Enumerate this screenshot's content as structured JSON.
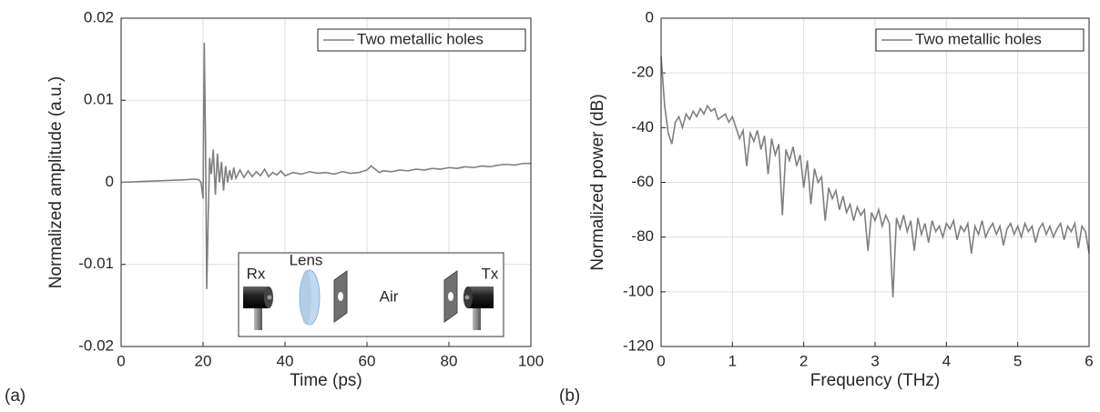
{
  "chart_data": [
    {
      "type": "line",
      "panel_label": "(a)",
      "xlabel": "Time (ps)",
      "ylabel": "Normalized amplitude (a.u.)",
      "x": [
        0,
        5,
        10,
        15,
        18,
        19,
        19.5,
        20,
        20.3,
        20.6,
        20.9,
        21.3,
        21.6,
        22,
        22.5,
        23,
        23.5,
        24,
        24.5,
        25,
        25.5,
        26,
        26.5,
        27,
        27.5,
        28,
        29,
        30,
        31,
        32,
        33,
        34,
        35,
        36,
        37,
        38,
        39,
        40,
        42,
        44,
        46,
        48,
        50,
        52,
        54,
        56,
        58,
        60,
        61,
        62,
        63,
        64,
        66,
        68,
        70,
        72,
        74,
        76,
        78,
        80,
        82,
        84,
        86,
        88,
        90,
        92,
        94,
        96,
        98,
        100
      ],
      "series": [
        {
          "name": "Two metallic holes",
          "color": "#7f7f7f",
          "values": [
            0,
            0.0001,
            0.0002,
            0.0003,
            0.0004,
            0.0003,
            0,
            -0.002,
            0.017,
            0.005,
            -0.013,
            -0.003,
            0.003,
            0.001,
            0.004,
            -0.0015,
            0.0035,
            0,
            0.0025,
            -0.001,
            0.002,
            0,
            0.0015,
            0.0003,
            0.0018,
            0.0005,
            0.0015,
            0.0006,
            0.0014,
            0.0007,
            0.0013,
            0.0008,
            0.0016,
            0.0007,
            0.0012,
            0.0009,
            0.0014,
            0.0008,
            0.0012,
            0.001,
            0.0013,
            0.0011,
            0.0012,
            0.001,
            0.0013,
            0.0011,
            0.0012,
            0.0015,
            0.002,
            0.0016,
            0.0012,
            0.0014,
            0.0013,
            0.0015,
            0.0014,
            0.0016,
            0.0015,
            0.0017,
            0.0016,
            0.0018,
            0.0017,
            0.0019,
            0.0018,
            0.002,
            0.0019,
            0.0021,
            0.0022,
            0.0021,
            0.0023,
            0.0023
          ]
        }
      ],
      "xlim": [
        0,
        100
      ],
      "xticks": [
        0,
        20,
        40,
        60,
        80,
        100
      ],
      "ylim": [
        -0.02,
        0.02
      ],
      "yticks": [
        -0.02,
        -0.01,
        0,
        0.01,
        0.02
      ],
      "grid": true,
      "legend": "upper-right"
    },
    {
      "type": "line",
      "panel_label": "(b)",
      "xlabel": "Frequency (THz)",
      "ylabel": "Normalized power (dB)",
      "x": [
        0,
        0.05,
        0.1,
        0.15,
        0.2,
        0.25,
        0.3,
        0.35,
        0.4,
        0.45,
        0.5,
        0.55,
        0.6,
        0.65,
        0.7,
        0.75,
        0.8,
        0.85,
        0.9,
        0.95,
        1,
        1.05,
        1.1,
        1.15,
        1.2,
        1.25,
        1.3,
        1.35,
        1.4,
        1.45,
        1.5,
        1.55,
        1.6,
        1.65,
        1.7,
        1.75,
        1.8,
        1.85,
        1.9,
        1.95,
        2,
        2.05,
        2.1,
        2.15,
        2.2,
        2.25,
        2.3,
        2.35,
        2.4,
        2.45,
        2.5,
        2.55,
        2.6,
        2.65,
        2.7,
        2.75,
        2.8,
        2.85,
        2.9,
        2.95,
        3,
        3.05,
        3.1,
        3.15,
        3.2,
        3.25,
        3.3,
        3.35,
        3.4,
        3.45,
        3.5,
        3.55,
        3.6,
        3.65,
        3.7,
        3.75,
        3.8,
        3.85,
        3.9,
        3.95,
        4,
        4.05,
        4.1,
        4.15,
        4.2,
        4.25,
        4.3,
        4.35,
        4.4,
        4.45,
        4.5,
        4.55,
        4.6,
        4.65,
        4.7,
        4.75,
        4.8,
        4.85,
        4.9,
        4.95,
        5,
        5.05,
        5.1,
        5.15,
        5.2,
        5.25,
        5.3,
        5.35,
        5.4,
        5.45,
        5.5,
        5.55,
        5.6,
        5.65,
        5.7,
        5.75,
        5.8,
        5.85,
        5.9,
        5.95,
        6
      ],
      "series": [
        {
          "name": "Two metallic holes",
          "color": "#7f7f7f",
          "values": [
            -14,
            -32,
            -42,
            -46,
            -38,
            -36,
            -40,
            -35,
            -37,
            -34,
            -36,
            -33,
            -35,
            -32,
            -34,
            -33,
            -37,
            -36,
            -35,
            -38,
            -36,
            -40,
            -44,
            -41,
            -54,
            -42,
            -45,
            -41,
            -48,
            -43,
            -57,
            -44,
            -50,
            -46,
            -72,
            -48,
            -52,
            -47,
            -54,
            -50,
            -62,
            -52,
            -68,
            -55,
            -60,
            -58,
            -74,
            -62,
            -66,
            -63,
            -70,
            -65,
            -71,
            -68,
            -74,
            -69,
            -72,
            -70,
            -85,
            -71,
            -74,
            -70,
            -76,
            -72,
            -75,
            -102,
            -73,
            -77,
            -72,
            -78,
            -74,
            -85,
            -73,
            -79,
            -75,
            -82,
            -74,
            -78,
            -76,
            -80,
            -75,
            -77,
            -74,
            -81,
            -76,
            -78,
            -75,
            -86,
            -76,
            -79,
            -74,
            -80,
            -77,
            -75,
            -79,
            -76,
            -83,
            -77,
            -75,
            -79,
            -76,
            -80,
            -75,
            -78,
            -76,
            -82,
            -77,
            -75,
            -79,
            -76,
            -80,
            -77,
            -75,
            -81,
            -76,
            -78,
            -75,
            -84,
            -76,
            -78,
            -86
          ]
        }
      ],
      "xlim": [
        0,
        6
      ],
      "xticks": [
        0,
        1,
        2,
        3,
        4,
        5,
        6
      ],
      "ylim": [
        -120,
        0
      ],
      "yticks": [
        -120,
        -100,
        -80,
        -60,
        -40,
        -20,
        0
      ],
      "grid": true,
      "legend": "upper-right"
    }
  ],
  "inset": {
    "rx": "Rx",
    "lens": "Lens",
    "air": "Air",
    "tx": "Tx"
  }
}
